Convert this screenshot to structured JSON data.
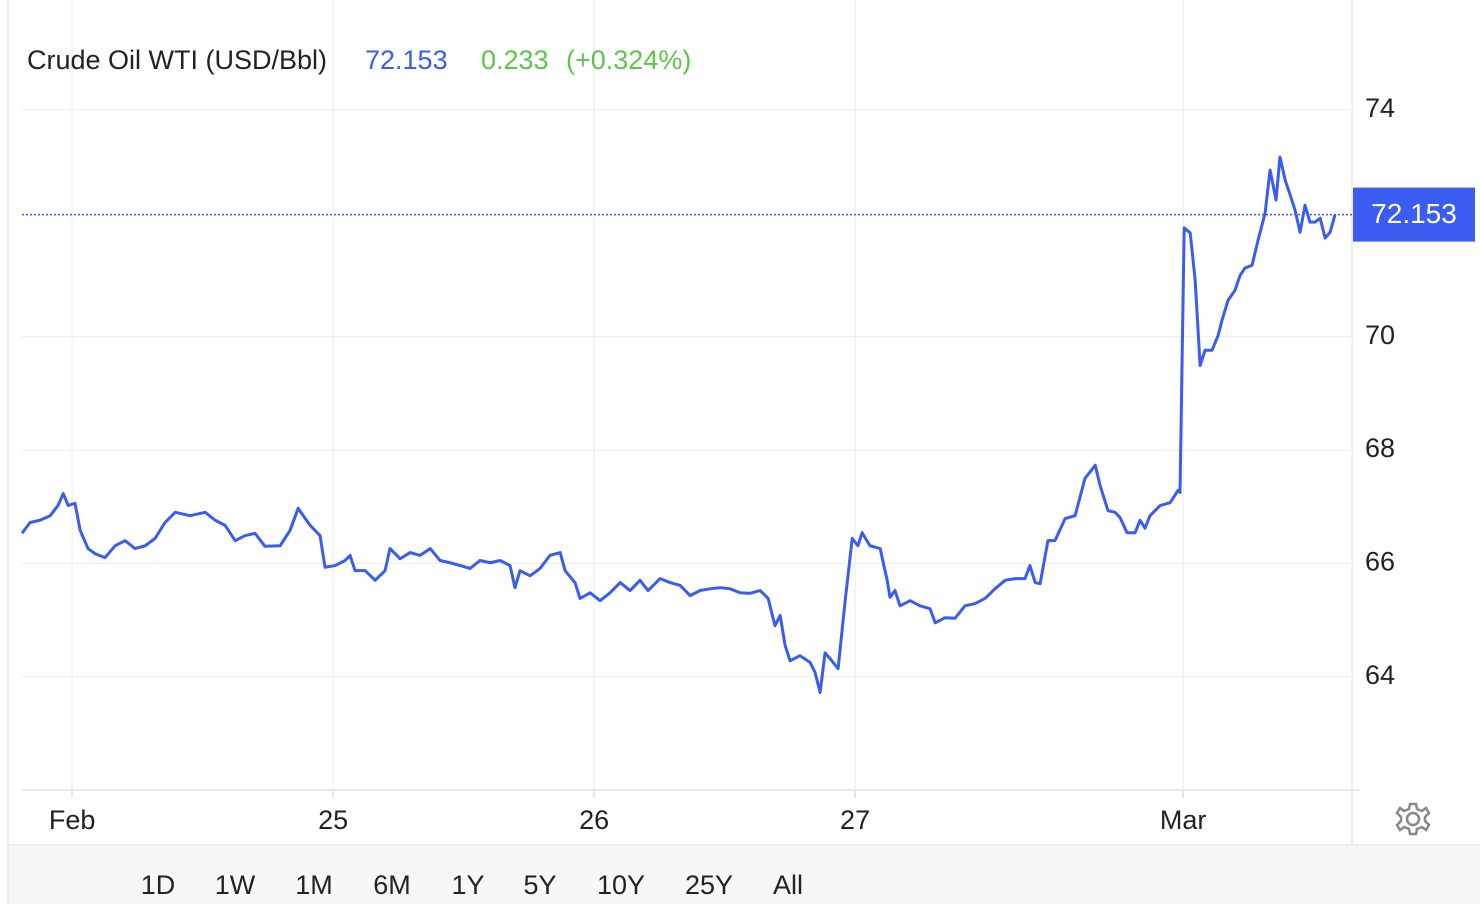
{
  "header": {
    "name": "Crude Oil WTI (USD/Bbl)",
    "price": 72.153,
    "change": 0.233,
    "change_percent": "(+0.324%)"
  },
  "chart_data": {
    "type": "line",
    "x": [
      -0.192,
      -0.161,
      -0.123,
      -0.084,
      -0.054,
      -0.034,
      -0.015,
      0.011,
      0.031,
      0.061,
      0.088,
      0.126,
      0.165,
      0.203,
      0.241,
      0.28,
      0.318,
      0.356,
      0.395,
      0.452,
      0.51,
      0.548,
      0.586,
      0.625,
      0.663,
      0.701,
      0.739,
      0.797,
      0.835,
      0.866,
      0.912,
      0.95,
      0.969,
      1.008,
      1.046,
      1.065,
      1.084,
      1.123,
      1.161,
      1.199,
      1.218,
      1.257,
      1.295,
      1.333,
      1.372,
      1.41,
      1.448,
      1.487,
      1.525,
      1.563,
      1.602,
      1.64,
      1.678,
      1.697,
      1.716,
      1.755,
      1.793,
      1.831,
      1.87,
      1.889,
      1.927,
      1.946,
      1.985,
      2.023,
      2.061,
      2.1,
      2.138,
      2.176,
      2.207,
      2.253,
      2.291,
      2.33,
      2.368,
      2.406,
      2.444,
      2.483,
      2.521,
      2.559,
      2.598,
      2.636,
      2.667,
      2.693,
      2.713,
      2.732,
      2.751,
      2.789,
      2.828,
      2.847,
      2.866,
      2.885,
      2.904,
      2.935,
      2.962,
      2.989,
      3.011,
      3.027,
      3.057,
      3.096,
      3.123,
      3.134,
      3.153,
      3.172,
      3.211,
      3.249,
      3.287,
      3.307,
      3.345,
      3.383,
      3.421,
      3.46,
      3.498,
      3.536,
      3.575,
      3.613,
      3.651,
      3.67,
      3.69,
      3.709,
      3.739,
      3.766,
      3.805,
      3.843,
      3.881,
      3.92,
      3.939,
      3.969,
      3.996,
      4.015,
      4.042,
      4.073,
      4.092,
      4.111,
      4.13,
      4.169,
      4.207,
      4.238,
      4.245,
      4.261,
      4.284,
      4.303,
      4.322,
      4.341,
      4.368,
      4.391,
      4.406,
      4.429,
      4.456,
      4.475,
      4.494,
      4.521,
      4.544,
      4.571,
      4.59,
      4.613,
      4.628,
      4.648,
      4.667,
      4.686,
      4.705,
      4.724,
      4.743,
      4.762,
      4.782,
      4.801,
      4.82,
      4.839
    ],
    "series": [
      {
        "name": "Crude Oil WTI",
        "color": "#3a5cf0",
        "values": [
          66.53,
          66.72,
          66.76,
          66.84,
          67.02,
          67.23,
          67.02,
          67.06,
          66.58,
          66.26,
          66.17,
          66.1,
          66.31,
          66.4,
          66.26,
          66.31,
          66.44,
          66.72,
          66.9,
          66.84,
          66.9,
          66.76,
          66.67,
          66.4,
          66.49,
          66.53,
          66.3,
          66.31,
          66.58,
          66.97,
          66.67,
          66.49,
          65.93,
          65.96,
          66.05,
          66.14,
          65.87,
          65.87,
          65.7,
          65.87,
          66.26,
          66.08,
          66.19,
          66.14,
          66.26,
          66.05,
          66.01,
          65.96,
          65.91,
          66.05,
          66.01,
          66.05,
          65.96,
          65.57,
          65.87,
          65.78,
          65.91,
          66.14,
          66.19,
          65.87,
          65.66,
          65.38,
          65.48,
          65.34,
          65.48,
          65.66,
          65.52,
          65.7,
          65.52,
          65.73,
          65.66,
          65.61,
          65.43,
          65.52,
          65.55,
          65.57,
          65.55,
          65.48,
          65.47,
          65.52,
          65.38,
          64.9,
          65.08,
          64.55,
          64.28,
          64.37,
          64.25,
          64.07,
          63.72,
          64.42,
          64.32,
          64.14,
          65.34,
          66.44,
          66.31,
          66.54,
          66.31,
          66.26,
          65.7,
          65.4,
          65.52,
          65.25,
          65.34,
          65.25,
          65.2,
          64.95,
          65.04,
          65.03,
          65.25,
          65.29,
          65.38,
          65.55,
          65.7,
          65.73,
          65.73,
          65.96,
          65.66,
          65.64,
          66.4,
          66.4,
          66.79,
          66.84,
          67.5,
          67.73,
          67.37,
          66.93,
          66.9,
          66.81,
          66.54,
          66.54,
          66.76,
          66.62,
          66.84,
          67.02,
          67.07,
          67.29,
          67.25,
          71.92,
          71.83,
          71.0,
          69.49,
          69.76,
          69.76,
          70.02,
          70.29,
          70.64,
          70.82,
          71.08,
          71.21,
          71.26,
          71.7,
          72.18,
          72.94,
          72.41,
          73.17,
          72.76,
          72.5,
          72.23,
          71.84,
          72.32,
          72.02,
          72.02,
          72.09,
          71.74,
          71.84,
          72.153
        ]
      }
    ],
    "last_value": 72.153,
    "xlim": [
      -0.192,
      4.904
    ],
    "xticks": [
      {
        "value": 0,
        "label": "Feb"
      },
      {
        "value": 1,
        "label": "25"
      },
      {
        "value": 2,
        "label": "26"
      },
      {
        "value": 3,
        "label": "27"
      },
      {
        "value": 4.257,
        "label": "Mar"
      }
    ],
    "ylim": [
      62,
      75.94
    ],
    "yticks": [
      64,
      66,
      68,
      70,
      74
    ],
    "grid": true
  },
  "range_buttons": {
    "options": [
      "1D",
      "1W",
      "1M",
      "6M",
      "1Y",
      "5Y",
      "10Y",
      "25Y",
      "All"
    ],
    "selected": 1
  }
}
